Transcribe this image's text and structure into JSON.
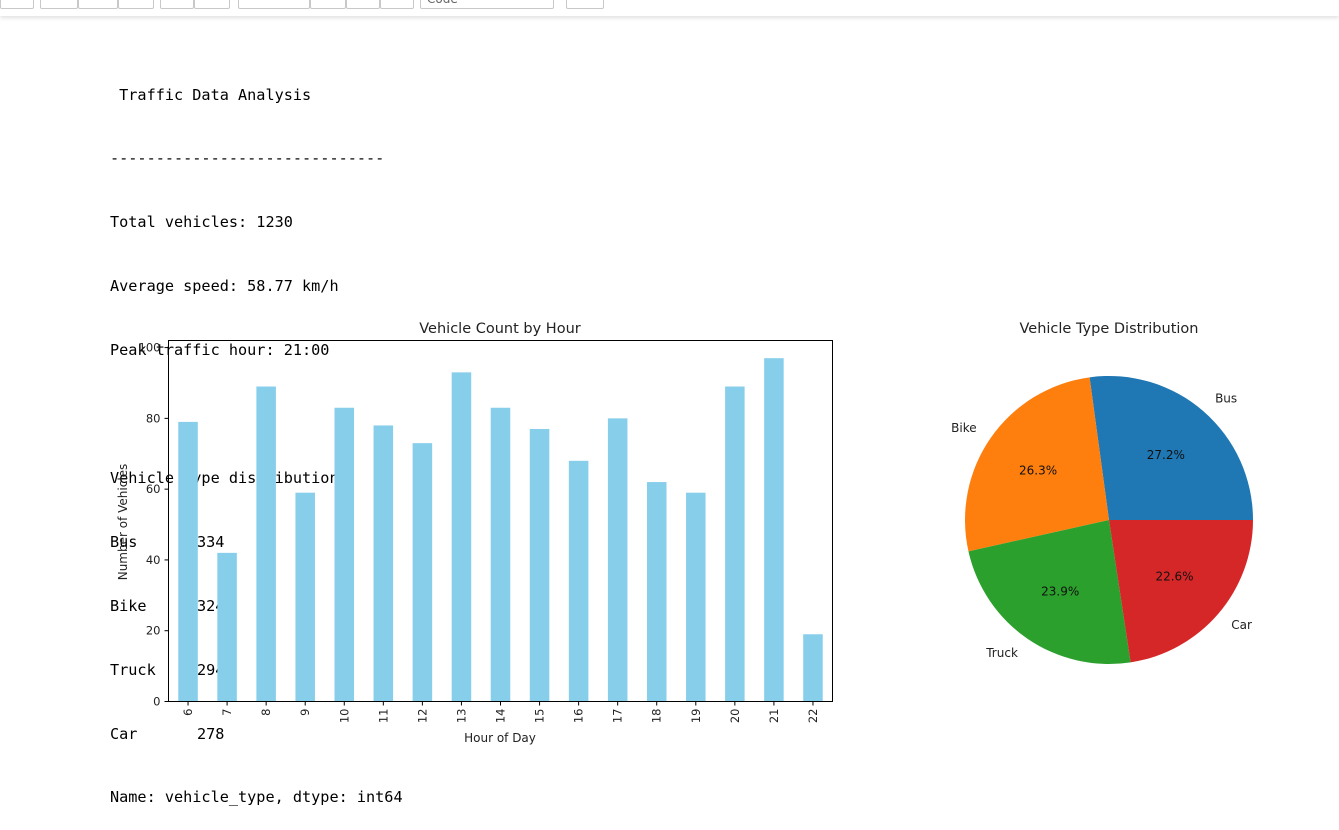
{
  "toolbar": {
    "cell_type_select": "Code"
  },
  "output": {
    "title": " Traffic Data Analysis",
    "separator": "------------------------------",
    "total_vehicles": "Total vehicles: 1230",
    "average_speed": "Average speed: 58.77 km/h",
    "peak_hour": "Peak traffic hour: 21:00",
    "distribution_heading": "Vehicle type distribution:",
    "distribution_rows": [
      {
        "name": "Bus",
        "count": "334"
      },
      {
        "name": "Bike",
        "count": "324"
      },
      {
        "name": "Truck",
        "count": "294"
      },
      {
        "name": "Car",
        "count": "278"
      }
    ],
    "series_footer": "Name: vehicle_type, dtype: int64"
  },
  "chart_data": [
    {
      "type": "bar",
      "title": "Vehicle Count by Hour",
      "xlabel": "Hour of Day",
      "ylabel": "Number of Vehicles",
      "categories": [
        "6",
        "7",
        "8",
        "9",
        "10",
        "11",
        "12",
        "13",
        "14",
        "15",
        "16",
        "17",
        "18",
        "19",
        "20",
        "21",
        "22"
      ],
      "values": [
        79,
        42,
        89,
        59,
        83,
        78,
        73,
        93,
        83,
        77,
        68,
        80,
        62,
        59,
        89,
        97,
        19
      ],
      "ylim": [
        0,
        102
      ],
      "yticks": [
        0,
        20,
        40,
        60,
        80,
        100
      ],
      "color": "#87ceeb",
      "grid": false
    },
    {
      "type": "pie",
      "title": "Vehicle Type Distribution",
      "labels": [
        "Bus",
        "Bike",
        "Truck",
        "Car"
      ],
      "values": [
        334,
        324,
        294,
        278
      ],
      "percent_labels": [
        "27.2%",
        "26.3%",
        "23.9%",
        "22.6%"
      ],
      "colors": [
        "#1f77b4",
        "#ff7f0e",
        "#2ca02c",
        "#d62728"
      ]
    }
  ]
}
